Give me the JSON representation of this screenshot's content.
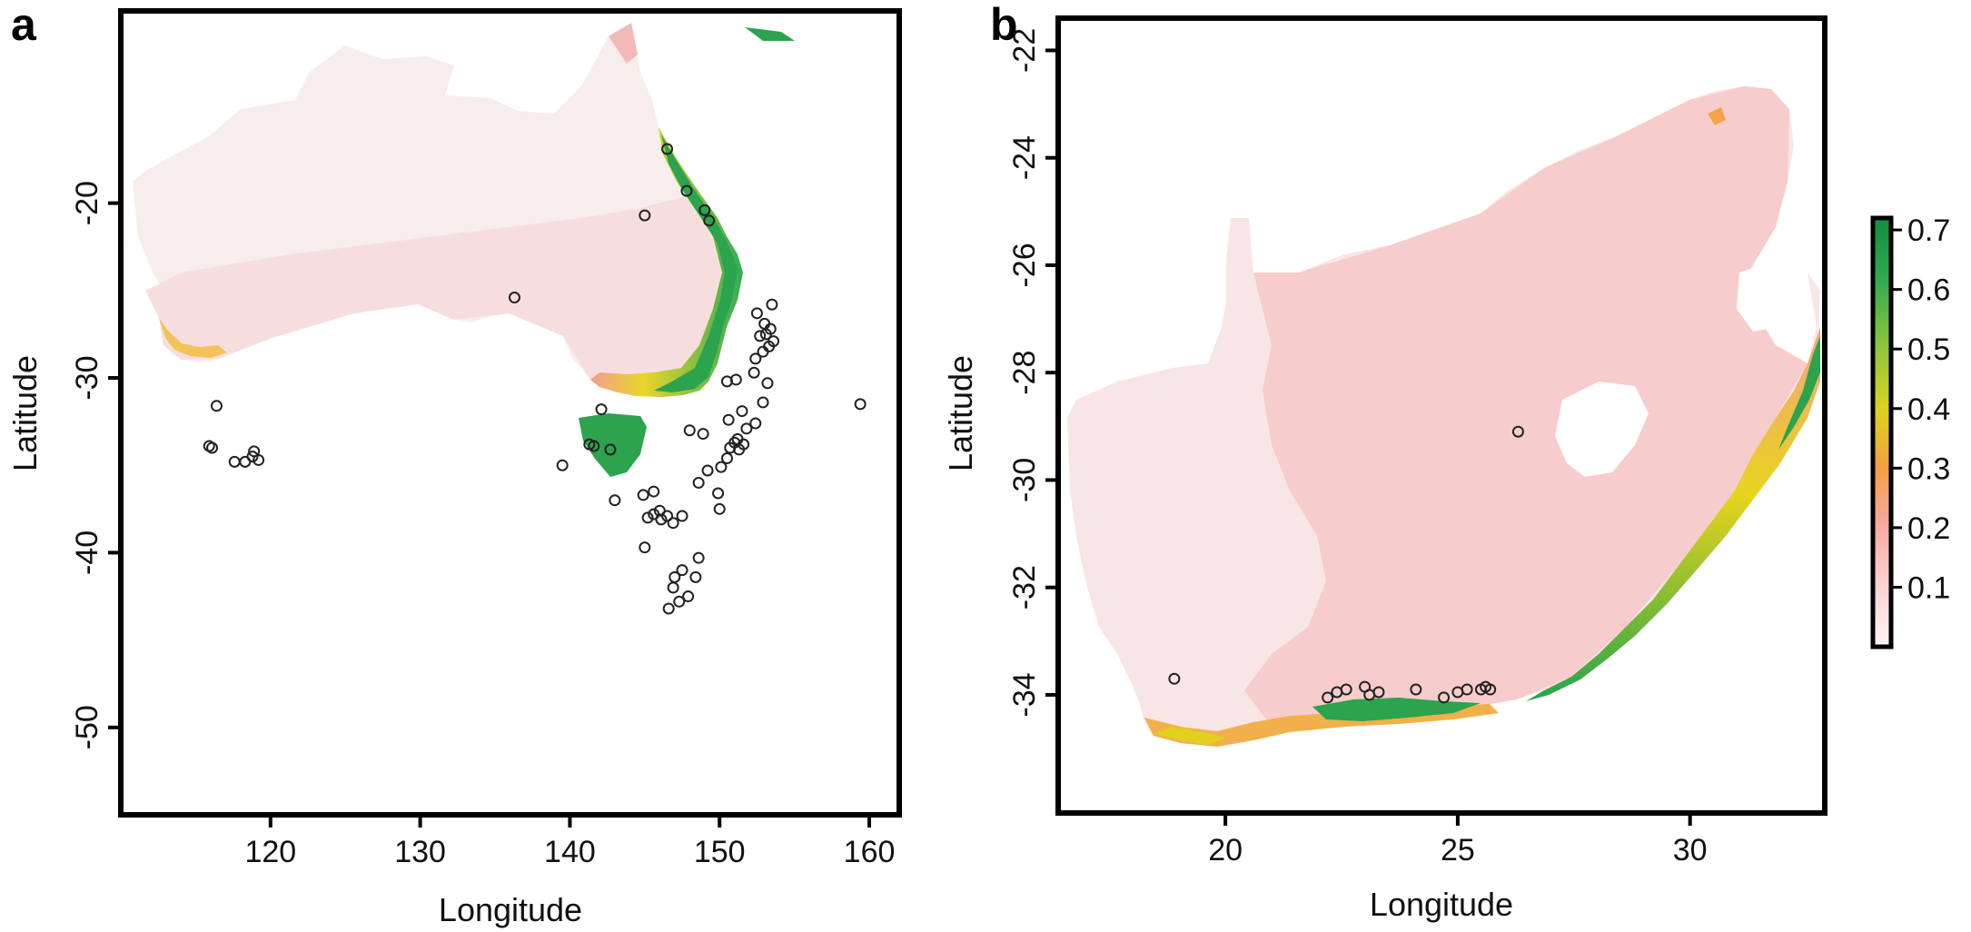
{
  "panels": [
    {
      "id": "a",
      "letter": "a",
      "xlabel": "Longitude",
      "ylabel": "Latitude",
      "xlim": [
        110,
        162
      ],
      "ylim": [
        -55,
        -9
      ],
      "xticks": [
        120,
        130,
        140,
        150,
        160
      ],
      "yticks": [
        -20,
        -30,
        -40,
        -50
      ],
      "region": "Australia",
      "occurrences": [
        {
          "lon": 146.5,
          "lat": -16.9
        },
        {
          "lon": 147.8,
          "lat": -19.3
        },
        {
          "lon": 145.0,
          "lat": -20.7
        },
        {
          "lon": 149.0,
          "lat": -20.4
        },
        {
          "lon": 149.3,
          "lat": -21.0
        },
        {
          "lon": 136.3,
          "lat": -25.4
        },
        {
          "lon": 152.5,
          "lat": -26.3
        },
        {
          "lon": 153.0,
          "lat": -26.9
        },
        {
          "lon": 153.4,
          "lat": -27.2
        },
        {
          "lon": 153.1,
          "lat": -27.5
        },
        {
          "lon": 152.7,
          "lat": -27.6
        },
        {
          "lon": 153.6,
          "lat": -27.9
        },
        {
          "lon": 153.3,
          "lat": -28.2
        },
        {
          "lon": 152.9,
          "lat": -28.5
        },
        {
          "lon": 153.5,
          "lat": -25.8
        },
        {
          "lon": 152.3,
          "lat": -29.7
        },
        {
          "lon": 153.2,
          "lat": -30.3
        },
        {
          "lon": 152.9,
          "lat": -31.4
        },
        {
          "lon": 151.5,
          "lat": -31.9
        },
        {
          "lon": 150.6,
          "lat": -32.4
        },
        {
          "lon": 152.4,
          "lat": -32.6
        },
        {
          "lon": 151.8,
          "lat": -32.9
        },
        {
          "lon": 151.2,
          "lat": -33.5
        },
        {
          "lon": 151.6,
          "lat": -33.8
        },
        {
          "lon": 151.0,
          "lat": -33.7
        },
        {
          "lon": 150.7,
          "lat": -34.0
        },
        {
          "lon": 151.3,
          "lat": -34.1
        },
        {
          "lon": 150.5,
          "lat": -34.6
        },
        {
          "lon": 150.1,
          "lat": -35.1
        },
        {
          "lon": 149.2,
          "lat": -35.3
        },
        {
          "lon": 148.6,
          "lat": -36.0
        },
        {
          "lon": 149.9,
          "lat": -36.6
        },
        {
          "lon": 150.0,
          "lat": -37.5
        },
        {
          "lon": 148.0,
          "lat": -33.0
        },
        {
          "lon": 148.9,
          "lat": -33.2
        },
        {
          "lon": 150.5,
          "lat": -30.2
        },
        {
          "lon": 151.1,
          "lat": -30.1
        },
        {
          "lon": 152.4,
          "lat": -28.9
        },
        {
          "lon": 146.0,
          "lat": -37.6
        },
        {
          "lon": 145.6,
          "lat": -37.8
        },
        {
          "lon": 146.5,
          "lat": -37.9
        },
        {
          "lon": 145.2,
          "lat": -38.0
        },
        {
          "lon": 146.1,
          "lat": -38.1
        },
        {
          "lon": 144.9,
          "lat": -36.7
        },
        {
          "lon": 145.6,
          "lat": -36.5
        },
        {
          "lon": 147.5,
          "lat": -37.9
        },
        {
          "lon": 146.9,
          "lat": -38.3
        },
        {
          "lon": 143.0,
          "lat": -37.0
        },
        {
          "lon": 142.1,
          "lat": -31.8
        },
        {
          "lon": 141.3,
          "lat": -33.8
        },
        {
          "lon": 141.6,
          "lat": -33.9
        },
        {
          "lon": 142.7,
          "lat": -34.1
        },
        {
          "lon": 139.5,
          "lat": -35.0
        },
        {
          "lon": 145.0,
          "lat": -39.7
        },
        {
          "lon": 147.5,
          "lat": -41.0
        },
        {
          "lon": 147.0,
          "lat": -41.4
        },
        {
          "lon": 148.6,
          "lat": -40.3
        },
        {
          "lon": 148.4,
          "lat": -41.4
        },
        {
          "lon": 146.9,
          "lat": -42.0
        },
        {
          "lon": 147.9,
          "lat": -42.5
        },
        {
          "lon": 146.6,
          "lat": -43.2
        },
        {
          "lon": 147.3,
          "lat": -42.8
        },
        {
          "lon": 116.4,
          "lat": -31.6
        },
        {
          "lon": 115.9,
          "lat": -33.9
        },
        {
          "lon": 116.1,
          "lat": -34.0
        },
        {
          "lon": 117.6,
          "lat": -34.8
        },
        {
          "lon": 118.3,
          "lat": -34.8
        },
        {
          "lon": 118.8,
          "lat": -34.5
        },
        {
          "lon": 118.9,
          "lat": -34.2
        },
        {
          "lon": 119.2,
          "lat": -34.7
        },
        {
          "lon": 159.4,
          "lat": -31.5
        }
      ]
    },
    {
      "id": "b",
      "letter": "b",
      "xlabel": "Longitude",
      "ylabel": "Latitude",
      "xlim": [
        16.4,
        32.9
      ],
      "ylim": [
        -36.2,
        -21.4
      ],
      "xticks": [
        20,
        25,
        30
      ],
      "yticks": [
        -22,
        -24,
        -26,
        -28,
        -30,
        -32,
        -34
      ],
      "region": "South Africa",
      "occurrences": [
        {
          "lon": 26.3,
          "lat": -29.1
        },
        {
          "lon": 18.9,
          "lat": -33.7
        },
        {
          "lon": 22.2,
          "lat": -34.05
        },
        {
          "lon": 22.4,
          "lat": -33.95
        },
        {
          "lon": 22.6,
          "lat": -33.9
        },
        {
          "lon": 23.0,
          "lat": -33.85
        },
        {
          "lon": 23.1,
          "lat": -34.0
        },
        {
          "lon": 23.3,
          "lat": -33.95
        },
        {
          "lon": 24.1,
          "lat": -33.9
        },
        {
          "lon": 24.7,
          "lat": -34.05
        },
        {
          "lon": 25.0,
          "lat": -33.95
        },
        {
          "lon": 25.2,
          "lat": -33.9
        },
        {
          "lon": 25.5,
          "lat": -33.9
        },
        {
          "lon": 25.6,
          "lat": -33.85
        },
        {
          "lon": 25.7,
          "lat": -33.9
        }
      ]
    }
  ],
  "colorbar": {
    "ticks": [
      "0.7",
      "0.6",
      "0.5",
      "0.4",
      "0.3",
      "0.2",
      "0.1"
    ],
    "range": [
      0.0,
      0.72
    ],
    "colors": [
      "#fde3e3",
      "#fbc0c0",
      "#f89a8a",
      "#f5a142",
      "#d9d020",
      "#8cc63f",
      "#2eaa4f",
      "#119142"
    ]
  }
}
